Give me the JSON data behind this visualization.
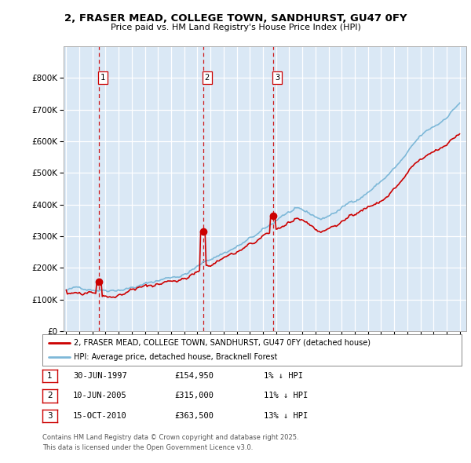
{
  "title": "2, FRASER MEAD, COLLEGE TOWN, SANDHURST, GU47 0FY",
  "subtitle": "Price paid vs. HM Land Registry's House Price Index (HPI)",
  "legend_line1": "2, FRASER MEAD, COLLEGE TOWN, SANDHURST, GU47 0FY (detached house)",
  "legend_line2": "HPI: Average price, detached house, Bracknell Forest",
  "footer1": "Contains HM Land Registry data © Crown copyright and database right 2025.",
  "footer2": "This data is licensed under the Open Government Licence v3.0.",
  "table_rows": [
    {
      "num": "1",
      "date": "30-JUN-1997",
      "price": "£154,950",
      "pct": "1% ↓ HPI"
    },
    {
      "num": "2",
      "date": "10-JUN-2005",
      "price": "£315,000",
      "pct": "11% ↓ HPI"
    },
    {
      "num": "3",
      "date": "15-OCT-2010",
      "price": "£363,500",
      "pct": "13% ↓ HPI"
    }
  ],
  "vline_dates": [
    1997.496,
    2005.44,
    2010.79
  ],
  "vline_labels": [
    "1",
    "2",
    "3"
  ],
  "sale_dates": [
    1997.496,
    2005.44,
    2010.79
  ],
  "sale_prices": [
    154950,
    315000,
    363500
  ],
  "ylim": [
    0,
    900000
  ],
  "yticks": [
    0,
    100000,
    200000,
    300000,
    400000,
    500000,
    600000,
    700000,
    800000
  ],
  "xlim": [
    1994.8,
    2025.5
  ],
  "xticks": [
    1995,
    1996,
    1997,
    1998,
    1999,
    2000,
    2001,
    2002,
    2003,
    2004,
    2005,
    2006,
    2007,
    2008,
    2009,
    2010,
    2011,
    2012,
    2013,
    2014,
    2015,
    2016,
    2017,
    2018,
    2019,
    2020,
    2021,
    2022,
    2023,
    2024,
    2025
  ],
  "hpi_color": "#7db8d8",
  "price_color": "#cc0000",
  "vline_color": "#cc0000",
  "bg_color": "#dae8f5",
  "grid_color": "#ffffff",
  "line_width": 1.2
}
